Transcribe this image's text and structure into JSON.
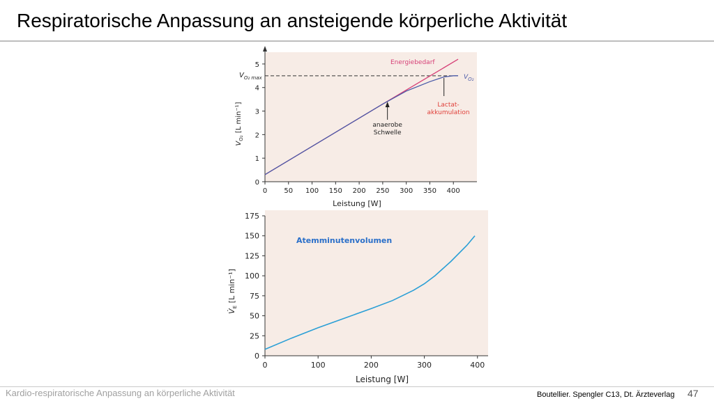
{
  "slide": {
    "title": "Respiratorische Anpassung an ansteigende körperliche Aktivität",
    "footer_left": "Kardio-respiratorische Anpassung an körperliche Aktivität",
    "footer_source": "Boutellier. Spengler C13, Dt. Ärzteverlag",
    "page_number": "47"
  },
  "colors": {
    "panel_bg": "#f7ece6",
    "energie_line": "#d63f76",
    "vo2_line": "#4a5aa8",
    "ve_line": "#2a9fd6",
    "annotation_text": "#e0413b",
    "ve_label": "#2a6fc9"
  },
  "chart_data": [
    {
      "type": "line",
      "xlabel": "Leistung [W]",
      "ylabel_main": "V",
      "ylabel_sub": "O₂",
      "ylabel_unit": "[L min⁻¹]",
      "xlim": [
        0,
        450
      ],
      "ylim": [
        0,
        5.5
      ],
      "x_ticks": [
        0,
        50,
        100,
        150,
        200,
        250,
        300,
        350,
        400
      ],
      "y_ticks": [
        0,
        1,
        2,
        3,
        4,
        5
      ],
      "vo2max_level": 4.5,
      "vo2max_label_main": "V",
      "vo2max_label_sub": "O₂ max",
      "series": [
        {
          "name": "Energiebedarf",
          "x": [
            0,
            250,
            410
          ],
          "y": [
            0.3,
            3.3,
            5.2
          ]
        },
        {
          "name": "VO₂",
          "x": [
            0,
            250,
            300,
            350,
            380,
            400,
            410
          ],
          "y": [
            0.3,
            3.3,
            3.85,
            4.25,
            4.45,
            4.5,
            4.5
          ]
        }
      ],
      "series_label_vo2_main": "V",
      "series_label_vo2_sub": "O₂",
      "annotations": {
        "anaerobe_line1": "anaerobe",
        "anaerobe_line2": "Schwelle",
        "anaerobe_x": 260,
        "lactat_line1": "Lactat-",
        "lactat_line2": "akkumulation",
        "lactat_x": 380
      }
    },
    {
      "type": "line",
      "xlabel": "Leistung [W]",
      "ylabel_main": "V̇",
      "ylabel_sub": "E",
      "ylabel_unit": "[L min⁻¹]",
      "xlim": [
        0,
        420
      ],
      "ylim": [
        0,
        175
      ],
      "x_ticks": [
        0,
        100,
        200,
        300,
        400
      ],
      "y_ticks": [
        0,
        25,
        50,
        75,
        100,
        125,
        150,
        175
      ],
      "series": [
        {
          "name": "Atemminutenvolumen",
          "x": [
            0,
            50,
            100,
            150,
            200,
            240,
            280,
            300,
            320,
            350,
            380,
            395
          ],
          "y": [
            8,
            22,
            35,
            47,
            59,
            69,
            82,
            90,
            100,
            118,
            138,
            150
          ]
        }
      ]
    }
  ]
}
